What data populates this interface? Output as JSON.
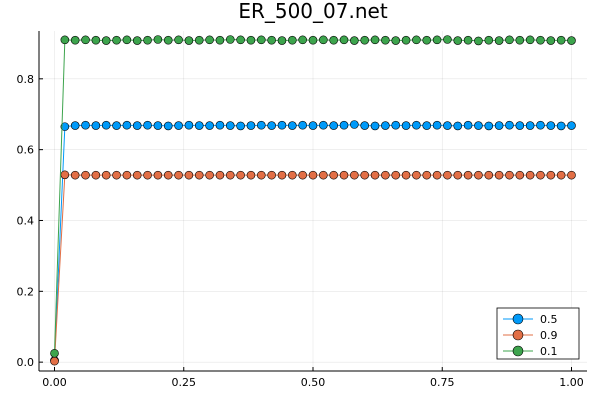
{
  "chart_data": {
    "type": "line",
    "title": "ER_500_07.net",
    "xlabel": "",
    "ylabel": "",
    "xlim": [
      -0.03,
      1.03
    ],
    "ylim": [
      -0.025,
      0.935
    ],
    "grid": true,
    "legend_position": "bottom-right",
    "x_ticks": [
      0.0,
      0.25,
      0.5,
      0.75,
      1.0
    ],
    "x_tick_labels": [
      "0.00",
      "0.25",
      "0.50",
      "0.75",
      "1.00"
    ],
    "y_ticks": [
      0.0,
      0.2,
      0.4,
      0.6,
      0.8
    ],
    "y_tick_labels": [
      "0.0",
      "0.2",
      "0.4",
      "0.6",
      "0.8"
    ],
    "x": [
      0.0,
      0.02,
      0.04,
      0.06,
      0.08,
      0.1,
      0.12,
      0.14,
      0.16,
      0.18,
      0.2,
      0.22,
      0.24,
      0.26,
      0.28,
      0.3,
      0.32,
      0.34,
      0.36,
      0.38,
      0.4,
      0.42,
      0.44,
      0.46,
      0.48,
      0.5,
      0.52,
      0.54,
      0.56,
      0.58,
      0.6,
      0.62,
      0.64,
      0.66,
      0.68,
      0.7,
      0.72,
      0.74,
      0.76,
      0.78,
      0.8,
      0.82,
      0.84,
      0.86,
      0.88,
      0.9,
      0.92,
      0.94,
      0.96,
      0.98,
      1.0
    ],
    "series": [
      {
        "name": "0.5",
        "color": "#009af9",
        "values": [
          0.005,
          0.665,
          0.668,
          0.669,
          0.668,
          0.669,
          0.668,
          0.669,
          0.668,
          0.669,
          0.668,
          0.667,
          0.668,
          0.669,
          0.668,
          0.668,
          0.669,
          0.668,
          0.667,
          0.668,
          0.669,
          0.668,
          0.669,
          0.668,
          0.669,
          0.668,
          0.669,
          0.668,
          0.669,
          0.671,
          0.668,
          0.667,
          0.668,
          0.669,
          0.668,
          0.669,
          0.668,
          0.669,
          0.668,
          0.667,
          0.669,
          0.668,
          0.667,
          0.668,
          0.669,
          0.668,
          0.668,
          0.669,
          0.668,
          0.667,
          0.668
        ]
      },
      {
        "name": "0.9",
        "color": "#e26f46",
        "values": [
          0.003,
          0.529,
          0.528,
          0.528,
          0.528,
          0.528,
          0.528,
          0.528,
          0.528,
          0.528,
          0.528,
          0.528,
          0.528,
          0.528,
          0.528,
          0.528,
          0.528,
          0.528,
          0.528,
          0.528,
          0.528,
          0.528,
          0.528,
          0.528,
          0.528,
          0.528,
          0.528,
          0.528,
          0.528,
          0.528,
          0.528,
          0.528,
          0.528,
          0.528,
          0.528,
          0.528,
          0.528,
          0.528,
          0.528,
          0.528,
          0.528,
          0.528,
          0.528,
          0.528,
          0.528,
          0.528,
          0.528,
          0.528,
          0.528,
          0.528,
          0.528
        ]
      },
      {
        "name": "0.1",
        "color": "#3da44d",
        "values": [
          0.025,
          0.91,
          0.909,
          0.91,
          0.909,
          0.908,
          0.909,
          0.91,
          0.908,
          0.909,
          0.911,
          0.909,
          0.91,
          0.908,
          0.909,
          0.91,
          0.909,
          0.911,
          0.91,
          0.909,
          0.91,
          0.909,
          0.908,
          0.909,
          0.91,
          0.909,
          0.91,
          0.909,
          0.91,
          0.908,
          0.909,
          0.91,
          0.909,
          0.908,
          0.909,
          0.91,
          0.909,
          0.91,
          0.911,
          0.908,
          0.909,
          0.907,
          0.909,
          0.908,
          0.91,
          0.909,
          0.91,
          0.909,
          0.908,
          0.909,
          0.908
        ]
      }
    ]
  }
}
